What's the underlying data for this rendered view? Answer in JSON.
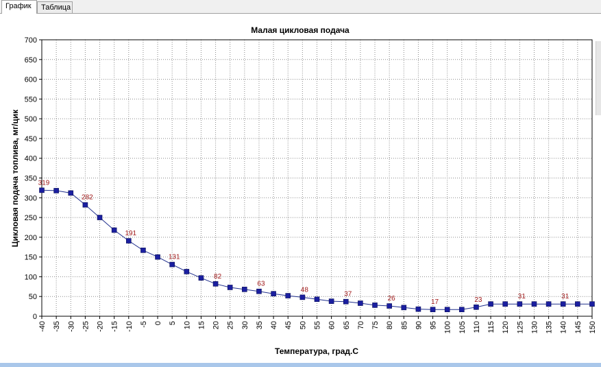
{
  "tabs": [
    {
      "label": "График",
      "active": true
    },
    {
      "label": "Таблица",
      "active": false
    }
  ],
  "chart_data": {
    "type": "line",
    "title": "Малая цикловая подача",
    "xlabel": "Температура, град.С",
    "ylabel": "Цикловая подача топлива, мг/цик",
    "xlim": [
      -40,
      150
    ],
    "ylim": [
      0,
      700
    ],
    "x_ticks": [
      "-40",
      "-35",
      "-30",
      "-25",
      "-20",
      "-15",
      "-10",
      "-5",
      "0",
      "5",
      "10",
      "15",
      "20",
      "25",
      "30",
      "35",
      "40",
      "45",
      "50",
      "55",
      "60",
      "65",
      "70",
      "75",
      "80",
      "85",
      "90",
      "95",
      "100",
      "105",
      "110",
      "115",
      "120",
      "125",
      "130",
      "135",
      "140",
      "145",
      "150"
    ],
    "y_ticks": [
      "0",
      "50",
      "100",
      "150",
      "200",
      "250",
      "300",
      "350",
      "400",
      "450",
      "500",
      "550",
      "600",
      "650",
      "700"
    ],
    "grid": true,
    "series": [
      {
        "color": "#1f2e8c",
        "marker_color": "#1b1fa0",
        "x": [
          -40,
          -35,
          -30,
          -25,
          -20,
          -15,
          -10,
          -5,
          0,
          5,
          10,
          15,
          20,
          25,
          30,
          35,
          40,
          45,
          50,
          55,
          60,
          65,
          70,
          75,
          80,
          85,
          90,
          95,
          100,
          105,
          110,
          115,
          120,
          125,
          130,
          135,
          140,
          145,
          150
        ],
        "y": [
          319,
          318,
          312,
          282,
          250,
          218,
          191,
          167,
          150,
          131,
          113,
          97,
          82,
          73,
          68,
          63,
          57,
          52,
          48,
          43,
          38,
          37,
          33,
          28,
          26,
          22,
          18,
          17,
          17,
          17,
          23,
          31,
          31,
          31,
          31,
          31,
          31,
          31,
          31
        ]
      }
    ],
    "data_labels": [
      {
        "x": -40,
        "y": 319,
        "text": "319"
      },
      {
        "x": -25,
        "y": 282,
        "text": "282"
      },
      {
        "x": -10,
        "y": 191,
        "text": "191"
      },
      {
        "x": 5,
        "y": 131,
        "text": "131"
      },
      {
        "x": 20,
        "y": 82,
        "text": "82"
      },
      {
        "x": 35,
        "y": 63,
        "text": "63"
      },
      {
        "x": 50,
        "y": 48,
        "text": "48"
      },
      {
        "x": 65,
        "y": 37,
        "text": "37"
      },
      {
        "x": 80,
        "y": 26,
        "text": "26"
      },
      {
        "x": 95,
        "y": 17,
        "text": "17"
      },
      {
        "x": 110,
        "y": 23,
        "text": "23"
      },
      {
        "x": 125,
        "y": 31,
        "text": "31"
      },
      {
        "x": 140,
        "y": 31,
        "text": "31"
      }
    ],
    "label_color": "#a01818"
  }
}
